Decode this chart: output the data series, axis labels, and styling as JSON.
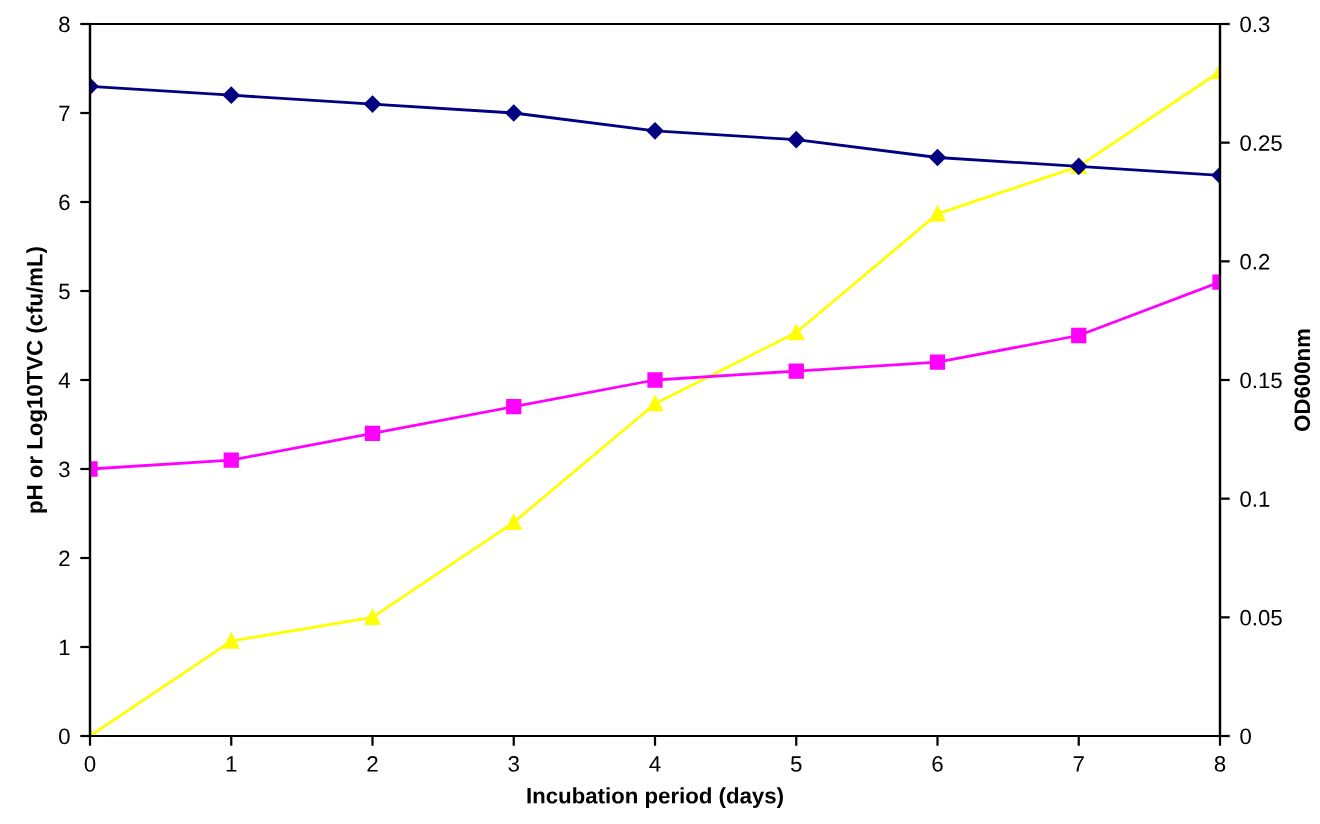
{
  "chart_data": {
    "type": "line",
    "xlabel": "Incubation period (days)",
    "ylabel": "pH or Log10TVC (cfu/mL)",
    "y2label": "OD600nm",
    "x": [
      0,
      1,
      2,
      3,
      4,
      5,
      6,
      7,
      8
    ],
    "series": [
      {
        "color": "#000080",
        "marker": "diamond",
        "values": [
          7.3,
          7.2,
          7.1,
          7.0,
          6.8,
          6.7,
          6.5,
          6.4,
          6.3
        ]
      },
      {
        "color": "#ff00ff",
        "marker": "square",
        "values": [
          3.0,
          3.1,
          3.4,
          3.7,
          4.0,
          4.1,
          4.2,
          4.5,
          5.1
        ]
      },
      {
        "color": "#ffff00",
        "marker": "triangle",
        "axis": "y2",
        "values": [
          0,
          0.04,
          0.05,
          0.09,
          0.14,
          0.17,
          0.22,
          0.24,
          0.28
        ]
      }
    ],
    "xlim": [
      0,
      8
    ],
    "xticks": [
      0,
      1,
      2,
      3,
      4,
      5,
      6,
      7,
      8
    ],
    "ylim": [
      0,
      8
    ],
    "yticks": [
      0,
      1,
      2,
      3,
      4,
      5,
      6,
      7,
      8
    ],
    "y2lim": [
      0,
      0.3
    ],
    "y2ticks": [
      0,
      0.05,
      0.1,
      0.15,
      0.2,
      0.25,
      0.3
    ],
    "grid": false,
    "legend": false,
    "line_style": "solid"
  }
}
